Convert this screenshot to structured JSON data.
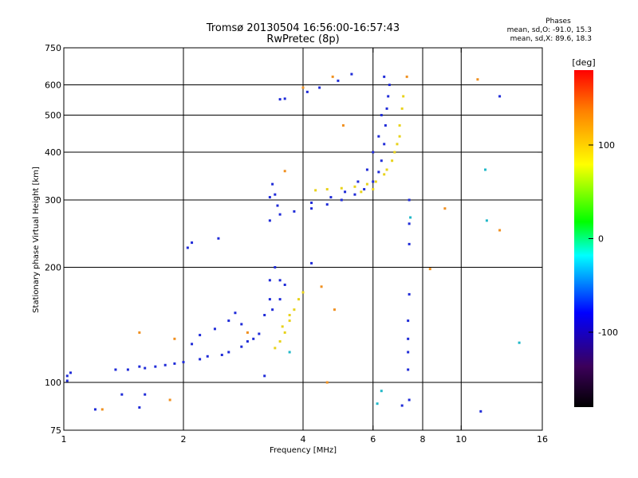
{
  "header": {
    "title": "Tromsø 20130504 16:56:00-16:57:43",
    "subtitle": "RwPretec (8p)",
    "phases_heading": "Phases",
    "phases_line1": "mean, sd,O: -91.0, 15.3",
    "phases_line2": "mean, sd,X: 89.6, 18.3"
  },
  "chart_data": {
    "type": "scatter",
    "xlabel": "Frequency [MHz]",
    "ylabel": "Stationary phase Virtual Height [km]",
    "x_scale": "log",
    "y_scale": "log",
    "xlim": [
      1,
      16
    ],
    "ylim": [
      75,
      750
    ],
    "x_ticks": [
      1,
      2,
      4,
      6,
      8,
      10,
      16
    ],
    "y_ticks": [
      75,
      100,
      200,
      300,
      400,
      500,
      600,
      750
    ],
    "x_gridlines": [
      2,
      4,
      6,
      8,
      10
    ],
    "y_gridlines": [
      100,
      200,
      300,
      400,
      500,
      600
    ],
    "colorbar": {
      "label": "[deg]",
      "range": [
        -180,
        180
      ],
      "ticks": [
        100,
        0,
        -100
      ],
      "colors": [
        "#000000",
        "#3c005a",
        "#0000ff",
        "#00ffff",
        "#00ff00",
        "#ffff00",
        "#ff8000",
        "#ff0000"
      ]
    },
    "series": [
      {
        "mode": "O",
        "phase_deg": -91,
        "color": "#1f2bd8",
        "points": [
          [
            1.02,
            104
          ],
          [
            1.04,
            106
          ],
          [
            1.02,
            101
          ],
          [
            1.35,
            108
          ],
          [
            1.45,
            108
          ],
          [
            1.6,
            109
          ],
          [
            1.8,
            111
          ],
          [
            2.0,
            113
          ],
          [
            2.2,
            115
          ],
          [
            2.5,
            118
          ],
          [
            2.8,
            124
          ],
          [
            3.0,
            130
          ],
          [
            3.1,
            134
          ],
          [
            1.55,
            110
          ],
          [
            1.7,
            110
          ],
          [
            1.9,
            112
          ],
          [
            2.3,
            117
          ],
          [
            2.6,
            120
          ],
          [
            2.1,
            126
          ],
          [
            2.2,
            133
          ],
          [
            2.4,
            138
          ],
          [
            2.6,
            145
          ],
          [
            2.7,
            152
          ],
          [
            2.8,
            142
          ],
          [
            2.9,
            128
          ],
          [
            3.2,
            150
          ],
          [
            3.3,
            165
          ],
          [
            3.3,
            185
          ],
          [
            3.4,
            200
          ],
          [
            3.5,
            185
          ],
          [
            3.6,
            180
          ],
          [
            3.5,
            165
          ],
          [
            3.35,
            155
          ],
          [
            2.05,
            225
          ],
          [
            2.1,
            232
          ],
          [
            2.45,
            238
          ],
          [
            3.3,
            265
          ],
          [
            3.5,
            275
          ],
          [
            3.8,
            280
          ],
          [
            4.2,
            285
          ],
          [
            4.6,
            292
          ],
          [
            5.0,
            300
          ],
          [
            5.4,
            310
          ],
          [
            5.7,
            320
          ],
          [
            6.0,
            335
          ],
          [
            6.2,
            355
          ],
          [
            6.3,
            380
          ],
          [
            6.4,
            420
          ],
          [
            6.45,
            470
          ],
          [
            6.5,
            520
          ],
          [
            6.55,
            560
          ],
          [
            6.6,
            600
          ],
          [
            4.2,
            295
          ],
          [
            4.7,
            305
          ],
          [
            5.1,
            315
          ],
          [
            5.5,
            335
          ],
          [
            5.8,
            360
          ],
          [
            6.0,
            400
          ],
          [
            6.2,
            440
          ],
          [
            6.3,
            500
          ],
          [
            3.3,
            305
          ],
          [
            3.35,
            330
          ],
          [
            3.4,
            310
          ],
          [
            3.45,
            290
          ],
          [
            3.5,
            550
          ],
          [
            3.6,
            552
          ],
          [
            4.1,
            575
          ],
          [
            4.4,
            590
          ],
          [
            4.9,
            615
          ],
          [
            5.3,
            640
          ],
          [
            6.4,
            630
          ],
          [
            7.4,
            300
          ],
          [
            7.4,
            260
          ],
          [
            7.4,
            230
          ],
          [
            7.4,
            170
          ],
          [
            7.35,
            145
          ],
          [
            7.35,
            130
          ],
          [
            7.35,
            120
          ],
          [
            7.35,
            108
          ],
          [
            7.4,
            90
          ],
          [
            7.1,
            87
          ],
          [
            1.2,
            85
          ],
          [
            1.4,
            93
          ],
          [
            1.55,
            86
          ],
          [
            1.6,
            93
          ],
          [
            11.2,
            84
          ],
          [
            12.5,
            560
          ],
          [
            4.2,
            205
          ],
          [
            3.2,
            104
          ]
        ]
      },
      {
        "mode": "X",
        "phase_deg": 90,
        "color": "#e8d21a",
        "points": [
          [
            3.4,
            123
          ],
          [
            3.5,
            128
          ],
          [
            3.6,
            135
          ],
          [
            3.7,
            145
          ],
          [
            3.8,
            155
          ],
          [
            3.9,
            165
          ],
          [
            4.0,
            172
          ],
          [
            3.55,
            140
          ],
          [
            3.7,
            150
          ],
          [
            4.3,
            318
          ],
          [
            4.6,
            320
          ],
          [
            5.0,
            322
          ],
          [
            5.4,
            325
          ],
          [
            5.8,
            330
          ],
          [
            6.1,
            335
          ],
          [
            6.4,
            350
          ],
          [
            6.7,
            380
          ],
          [
            6.9,
            420
          ],
          [
            7.0,
            470
          ],
          [
            7.1,
            520
          ],
          [
            7.15,
            560
          ],
          [
            5.6,
            315
          ],
          [
            6.0,
            320
          ],
          [
            6.5,
            360
          ],
          [
            6.8,
            400
          ],
          [
            7.0,
            440
          ]
        ]
      },
      {
        "mode": "scatter",
        "phase_deg": 140,
        "color": "#f09020",
        "points": [
          [
            1.25,
            85
          ],
          [
            1.55,
            135
          ],
          [
            1.85,
            90
          ],
          [
            1.9,
            130
          ],
          [
            2.9,
            135
          ],
          [
            4.45,
            178
          ],
          [
            4.6,
            100
          ],
          [
            4.8,
            155
          ],
          [
            5.05,
            470
          ],
          [
            4.75,
            630
          ],
          [
            7.3,
            630
          ],
          [
            8.35,
            198
          ],
          [
            9.1,
            285
          ],
          [
            11.0,
            620
          ],
          [
            12.5,
            250
          ],
          [
            4.0,
            590
          ],
          [
            3.6,
            357
          ]
        ]
      },
      {
        "mode": "scatter",
        "phase_deg": 30,
        "color": "#20b8c8",
        "points": [
          [
            11.5,
            360
          ],
          [
            11.6,
            265
          ],
          [
            14.0,
            127
          ],
          [
            6.15,
            88
          ],
          [
            6.3,
            95
          ],
          [
            7.45,
            270
          ],
          [
            3.7,
            120
          ]
        ]
      }
    ]
  }
}
